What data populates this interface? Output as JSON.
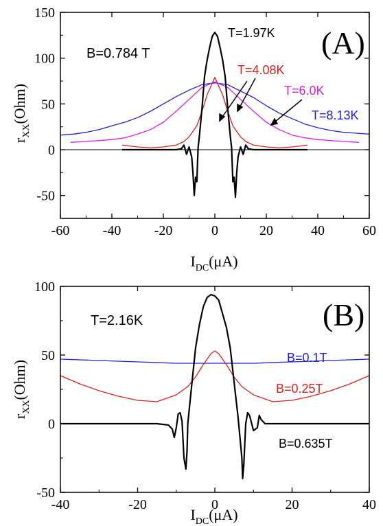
{
  "chart_data": [
    {
      "panel": "A",
      "type": "line",
      "panel_label": "(A)",
      "annotation": "B=0.784 T",
      "xlabel_main": "I",
      "xlabel_sub": "DC",
      "xlabel_unit": "(μA)",
      "ylabel_main": "r",
      "ylabel_sub": "XX",
      "ylabel_unit": "(Ohm)",
      "xlim": [
        -60,
        60
      ],
      "ylim": [
        -75,
        150
      ],
      "xticks": [
        -60,
        -40,
        -20,
        0,
        20,
        40,
        60
      ],
      "yticks": [
        -50,
        0,
        50,
        100,
        150
      ],
      "grid": false,
      "zero_line": true,
      "series": [
        {
          "name": "T=8.13K",
          "color": "#1f1fdc",
          "x": [
            -60,
            -55,
            -50,
            -45,
            -40,
            -35,
            -30,
            -25,
            -20,
            -15,
            -10,
            -5,
            0,
            5,
            10,
            15,
            20,
            25,
            30,
            35,
            40,
            45,
            50,
            55,
            60
          ],
          "y": [
            16,
            17,
            19,
            22,
            26,
            30,
            35,
            42,
            50,
            58,
            65,
            71,
            73,
            71,
            64,
            57,
            48,
            40,
            34,
            28,
            24,
            21,
            19,
            18,
            17
          ]
        },
        {
          "name": "T=6.0K",
          "color": "#e01ee0",
          "x": [
            -56,
            -50,
            -45,
            -40,
            -35,
            -30,
            -25,
            -20,
            -15,
            -10,
            -5,
            0,
            5,
            10,
            15,
            20,
            25,
            30,
            35,
            40,
            45,
            50,
            56
          ],
          "y": [
            8,
            9,
            10,
            11,
            13,
            17,
            22,
            30,
            42,
            55,
            68,
            74,
            68,
            55,
            42,
            30,
            22,
            16,
            13,
            11,
            10,
            9,
            8
          ]
        },
        {
          "name": "T=4.08K",
          "color": "#e01e1e",
          "x": [
            -36,
            -30,
            -25,
            -20,
            -15,
            -12,
            -10,
            -7,
            -5,
            -3,
            0,
            3,
            5,
            7,
            10,
            12,
            15,
            20,
            25,
            30,
            36
          ],
          "y": [
            5,
            3,
            2,
            3,
            5,
            9,
            14,
            26,
            42,
            60,
            79,
            60,
            42,
            26,
            14,
            9,
            5,
            3,
            2,
            3,
            5
          ]
        },
        {
          "name": "T=1.97K",
          "color": "#000000",
          "x": [
            -36,
            -30,
            -20,
            -15,
            -13,
            -12,
            -11,
            -10,
            -9,
            -8.5,
            -8,
            -7.5,
            -7,
            -6.5,
            -6,
            -5,
            -4,
            -3,
            -2,
            -1,
            0,
            1,
            2,
            3,
            4,
            5,
            6,
            6.5,
            7,
            7.5,
            8,
            8.5,
            9,
            10,
            11,
            12,
            13,
            15,
            20,
            30,
            36
          ],
          "y": [
            0,
            0,
            0,
            0,
            1,
            5,
            -5,
            3,
            -8,
            -25,
            -50,
            -30,
            -35,
            2,
            15,
            45,
            80,
            98,
            112,
            124,
            128,
            124,
            112,
            98,
            80,
            45,
            15,
            2,
            -35,
            -30,
            -52,
            -25,
            -8,
            3,
            -5,
            5,
            1,
            0,
            0,
            0,
            0
          ]
        }
      ],
      "labels": [
        {
          "text": "T=1.97K",
          "color": "#000000"
        },
        {
          "text": "T=4.08K",
          "color": "#e01e1e"
        },
        {
          "text": "T=6.0K",
          "color": "#e01ee0"
        },
        {
          "text": "T=8.13K",
          "color": "#1f1fdc"
        }
      ]
    },
    {
      "panel": "B",
      "type": "line",
      "panel_label": "(B)",
      "annotation": "T=2.16K",
      "xlabel_main": "I",
      "xlabel_sub": "DC",
      "xlabel_unit": "(μA)",
      "ylabel_main": "r",
      "ylabel_sub": "XX",
      "ylabel_unit": "(Ohm)",
      "xlim": [
        -40,
        40
      ],
      "ylim": [
        -50,
        100
      ],
      "xticks": [
        -40,
        -20,
        0,
        20,
        40
      ],
      "yticks": [
        -50,
        0,
        50,
        100
      ],
      "grid": false,
      "zero_line": false,
      "series": [
        {
          "name": "B=0.1T",
          "color": "#1f1fdc",
          "x": [
            -40,
            -30,
            -20,
            -10,
            0,
            10,
            20,
            30,
            40
          ],
          "y": [
            47,
            46,
            45,
            44,
            44,
            44,
            45,
            46,
            47
          ]
        },
        {
          "name": "B=0.25T",
          "color": "#e01e1e",
          "x": [
            -40,
            -35,
            -30,
            -25,
            -20,
            -15,
            -10,
            -7,
            -5,
            -3,
            -1,
            0,
            1,
            3,
            5,
            7,
            10,
            15,
            20,
            25,
            30,
            35,
            40
          ],
          "y": [
            35,
            29,
            24,
            20,
            17,
            16,
            21,
            27,
            34,
            43,
            51,
            53,
            51,
            43,
            34,
            27,
            21,
            16,
            17,
            20,
            24,
            29,
            35
          ]
        },
        {
          "name": "B=0.635T",
          "color": "#000000",
          "x": [
            -40,
            -30,
            -20,
            -15,
            -12,
            -11,
            -10.5,
            -10,
            -9.5,
            -9,
            -8.5,
            -8,
            -7.5,
            -7.2,
            -7,
            -6,
            -5,
            -4,
            -3,
            -2,
            -1,
            0,
            1,
            2,
            3,
            4,
            5,
            6,
            7,
            7.2,
            7.5,
            8,
            8.5,
            9,
            10,
            11,
            11.5,
            12,
            13,
            15,
            20,
            30,
            40
          ],
          "y": [
            0,
            0,
            0,
            0,
            -1,
            -4,
            -10,
            -3,
            7,
            8,
            2,
            -25,
            -33,
            -20,
            0,
            28,
            55,
            72,
            85,
            92,
            94,
            93,
            90,
            80,
            70,
            55,
            30,
            5,
            -25,
            -40,
            -30,
            0,
            8,
            6,
            -5,
            -3,
            6,
            3,
            0,
            0,
            0,
            0,
            0
          ]
        }
      ],
      "labels": [
        {
          "text": "B=0.1T",
          "color": "#1f1fdc"
        },
        {
          "text": "B=0.25T",
          "color": "#e01e1e"
        },
        {
          "text": "B=0.635T",
          "color": "#000000"
        }
      ]
    }
  ]
}
